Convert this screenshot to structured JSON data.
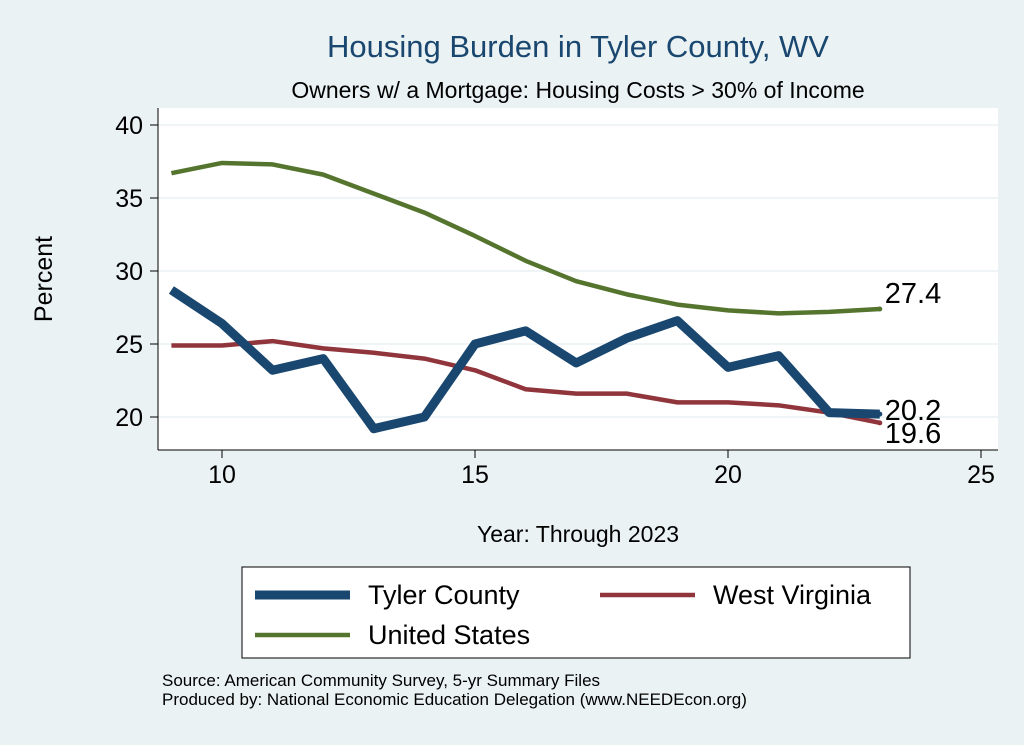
{
  "chart_data": {
    "type": "line",
    "title": "Housing Burden in Tyler County, WV",
    "subtitle": "Owners w/ a Mortgage: Housing Costs > 30% of Income",
    "xlabel": "Year: Through 2023",
    "ylabel": "Percent",
    "xlim": [
      8.7,
      25.3
    ],
    "ylim": [
      18.2,
      41.2
    ],
    "xticks": [
      10,
      15,
      20,
      25
    ],
    "yticks": [
      20,
      25,
      30,
      35,
      40
    ],
    "grid": true,
    "legend_position": "bottom",
    "x": [
      9,
      10,
      11,
      12,
      13,
      14,
      15,
      16,
      17,
      18,
      19,
      20,
      21,
      22,
      23
    ],
    "series": [
      {
        "name": "Tyler County",
        "color": "#1a476f",
        "width": 9,
        "values": [
          28.7,
          26.4,
          23.2,
          24.0,
          19.2,
          20.0,
          25.0,
          25.9,
          23.7,
          25.4,
          26.6,
          23.4,
          24.2,
          20.3,
          20.2
        ],
        "end_label": "20.2"
      },
      {
        "name": "West Virginia",
        "color": "#90353b",
        "width": 4.5,
        "values": [
          24.9,
          24.9,
          25.2,
          24.7,
          24.4,
          24.0,
          23.2,
          21.9,
          21.6,
          21.6,
          21.0,
          21.0,
          20.8,
          20.3,
          19.6
        ],
        "end_label": "19.6"
      },
      {
        "name": "United States",
        "color": "#55752f",
        "width": 4.5,
        "values": [
          36.7,
          37.4,
          37.3,
          36.6,
          35.3,
          34.0,
          32.4,
          30.7,
          29.3,
          28.4,
          27.7,
          27.3,
          27.1,
          27.2,
          27.4
        ],
        "end_label": "27.4"
      }
    ]
  },
  "source": "Source: American Community Survey, 5-yr Summary Files",
  "producer": "Produced by: National Economic Education Delegation (www.NEEDEcon.org)"
}
